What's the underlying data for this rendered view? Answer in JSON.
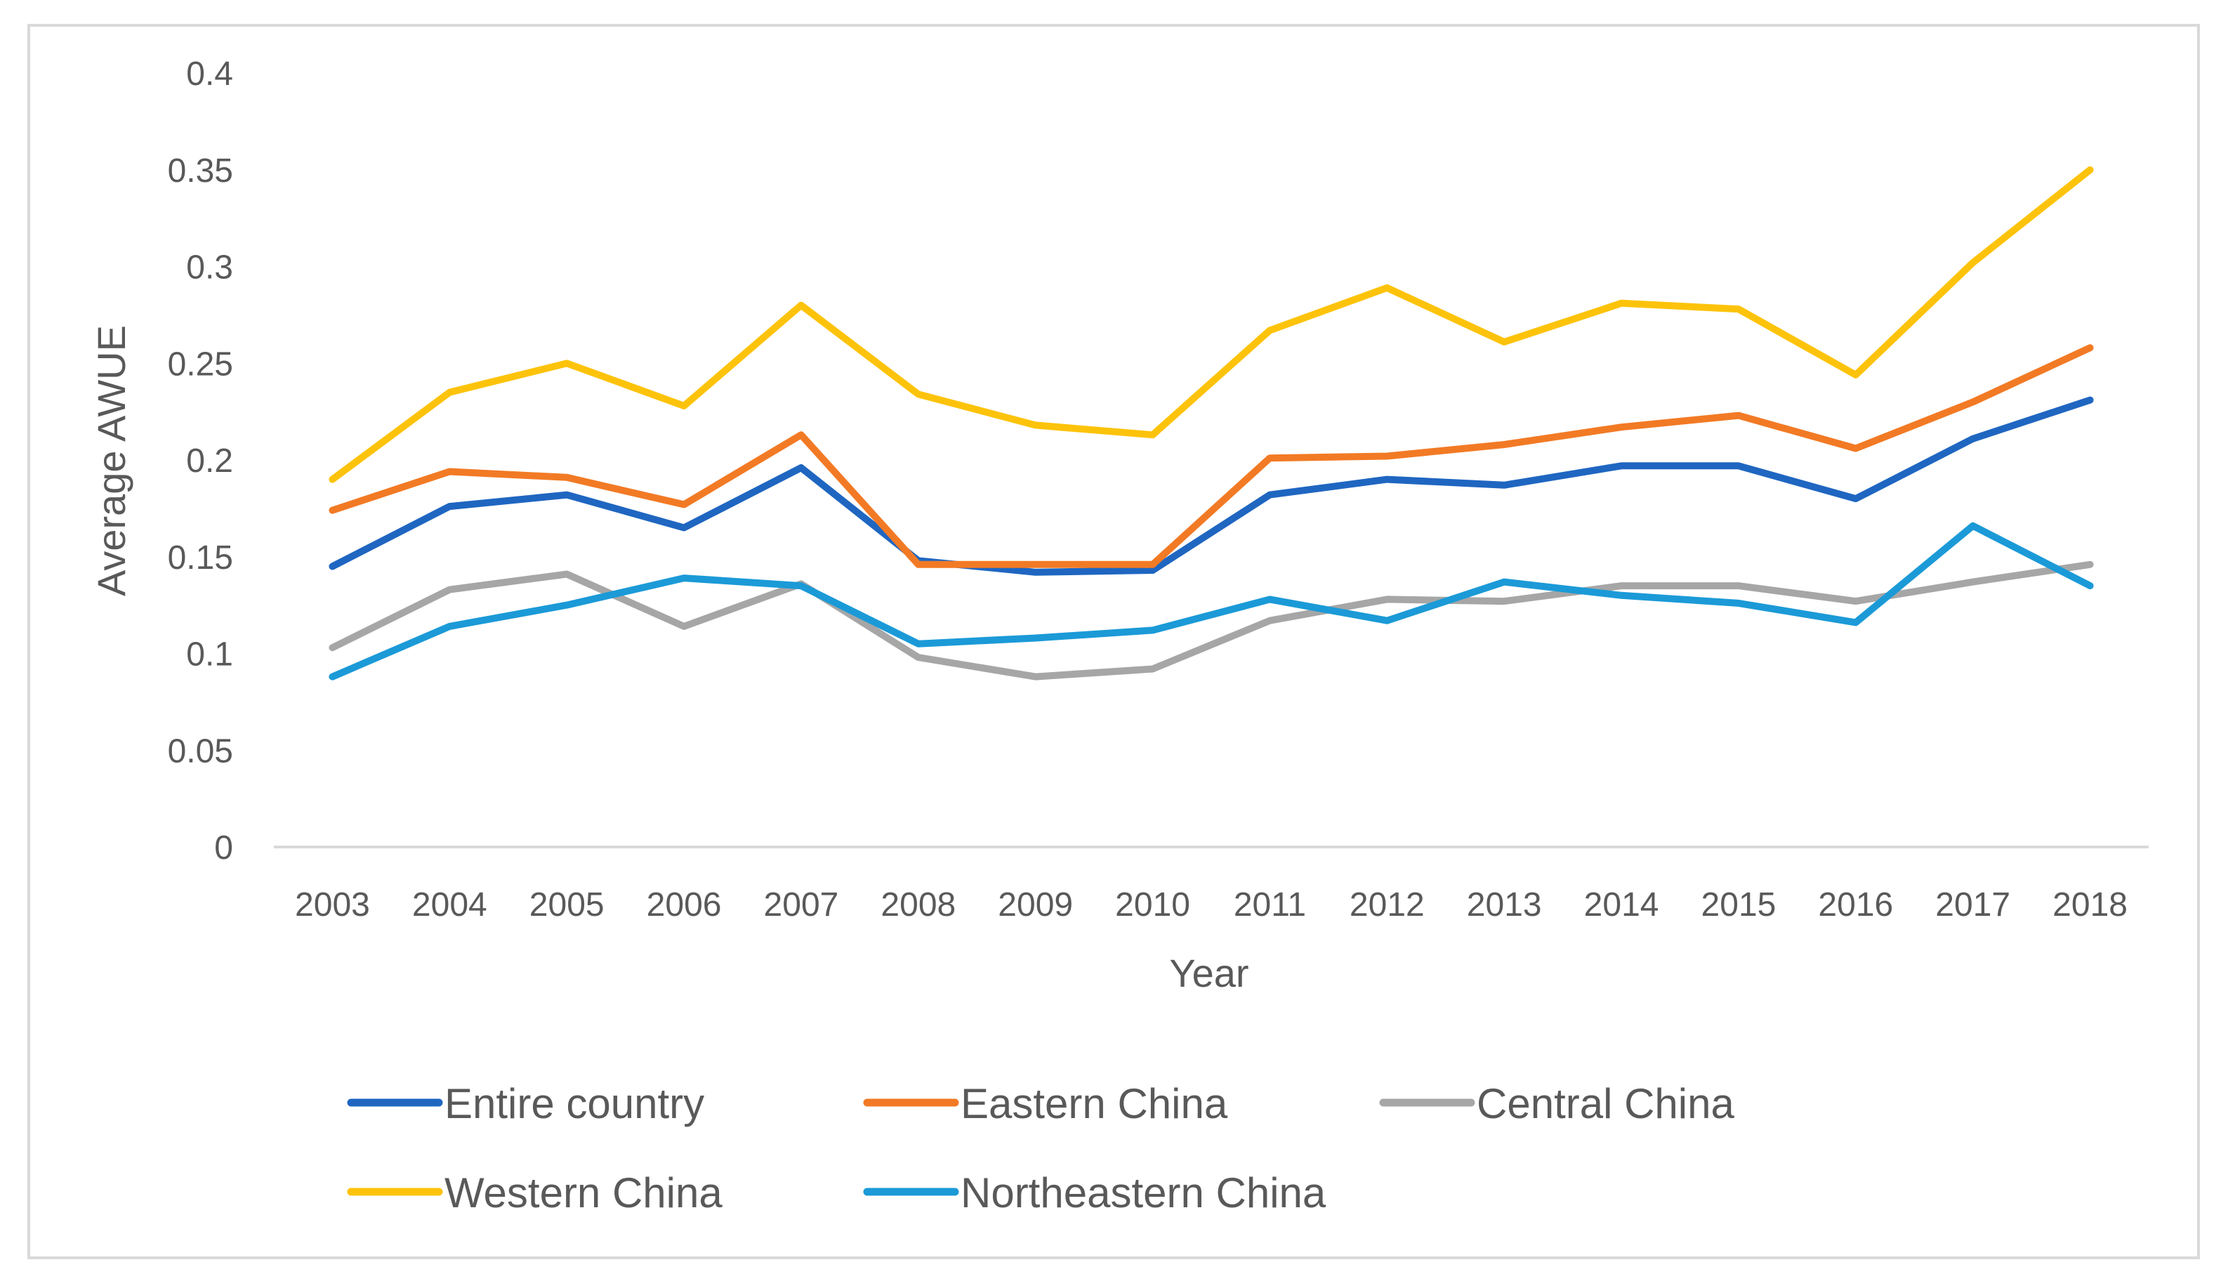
{
  "chart_data": {
    "type": "line",
    "title": "",
    "xlabel": "Year",
    "ylabel": "Average AWUE",
    "ylim": [
      0,
      0.4
    ],
    "yticks": [
      0,
      0.05,
      0.1,
      0.15,
      0.2,
      0.25,
      0.3,
      0.35,
      0.4
    ],
    "ytick_labels": [
      "0",
      "0.05",
      "0.1",
      "0.15",
      "0.2",
      "0.25",
      "0.3",
      "0.35",
      "0.4"
    ],
    "categories": [
      "2003",
      "2004",
      "2005",
      "2006",
      "2007",
      "2008",
      "2009",
      "2010",
      "2011",
      "2012",
      "2013",
      "2014",
      "2015",
      "2016",
      "2017",
      "2018"
    ],
    "grid": false,
    "legend_position": "bottom",
    "series": [
      {
        "name": "Entire country",
        "color": "#1F66C1",
        "values": [
          0.145,
          0.176,
          0.182,
          0.165,
          0.196,
          0.148,
          0.142,
          0.143,
          0.182,
          0.19,
          0.187,
          0.197,
          0.197,
          0.18,
          0.211,
          0.231
        ]
      },
      {
        "name": "Eastern China",
        "color": "#F27A25",
        "values": [
          0.174,
          0.194,
          0.191,
          0.177,
          0.213,
          0.146,
          0.146,
          0.146,
          0.201,
          0.202,
          0.208,
          0.217,
          0.223,
          0.206,
          0.23,
          0.258
        ]
      },
      {
        "name": "Central China",
        "color": "#A6A6A6",
        "values": [
          0.103,
          0.133,
          0.141,
          0.114,
          0.136,
          0.098,
          0.088,
          0.092,
          0.117,
          0.128,
          0.127,
          0.135,
          0.135,
          0.127,
          0.137,
          0.146
        ]
      },
      {
        "name": "Western China",
        "color": "#FDC30A",
        "values": [
          0.19,
          0.235,
          0.25,
          0.228,
          0.28,
          0.234,
          0.218,
          0.213,
          0.267,
          0.289,
          0.261,
          0.281,
          0.278,
          0.244,
          0.302,
          0.35
        ]
      },
      {
        "name": "Northeastern China",
        "color": "#1B9AD7",
        "values": [
          0.088,
          0.114,
          0.125,
          0.139,
          0.135,
          0.105,
          0.108,
          0.112,
          0.128,
          0.117,
          0.137,
          0.13,
          0.126,
          0.116,
          0.166,
          0.135
        ]
      }
    ]
  }
}
